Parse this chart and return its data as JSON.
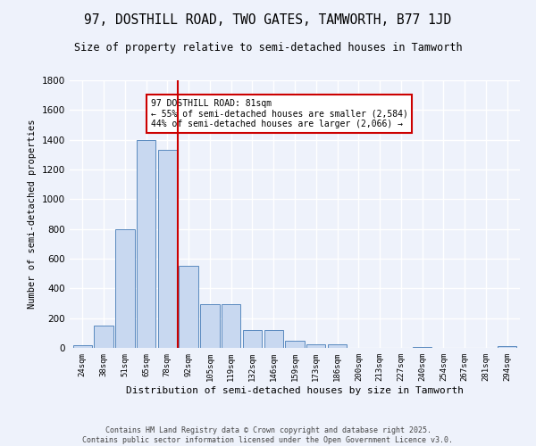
{
  "title": "97, DOSTHILL ROAD, TWO GATES, TAMWORTH, B77 1JD",
  "subtitle": "Size of property relative to semi-detached houses in Tamworth",
  "xlabel": "Distribution of semi-detached houses by size in Tamworth",
  "ylabel": "Number of semi-detached properties",
  "bar_color": "#c8d8f0",
  "bar_edge_color": "#5a8abf",
  "categories": [
    "24sqm",
    "38sqm",
    "51sqm",
    "65sqm",
    "78sqm",
    "92sqm",
    "105sqm",
    "119sqm",
    "132sqm",
    "146sqm",
    "159sqm",
    "173sqm",
    "186sqm",
    "200sqm",
    "213sqm",
    "227sqm",
    "240sqm",
    "254sqm",
    "267sqm",
    "281sqm",
    "294sqm"
  ],
  "values": [
    20,
    150,
    800,
    1400,
    1330,
    550,
    295,
    295,
    120,
    120,
    50,
    25,
    25,
    0,
    0,
    0,
    5,
    0,
    0,
    0,
    10
  ],
  "vline_x": 4.5,
  "vline_color": "#cc0000",
  "annotation_title": "97 DOSTHILL ROAD: 81sqm",
  "annotation_line1": "← 55% of semi-detached houses are smaller (2,584)",
  "annotation_line2": "44% of semi-detached houses are larger (2,066) →",
  "annotation_box_color": "#ffffff",
  "annotation_box_edge": "#cc0000",
  "footer1": "Contains HM Land Registry data © Crown copyright and database right 2025.",
  "footer2": "Contains public sector information licensed under the Open Government Licence v3.0.",
  "ylim": [
    0,
    1800
  ],
  "background_color": "#eef2fb",
  "grid_color": "#ffffff"
}
